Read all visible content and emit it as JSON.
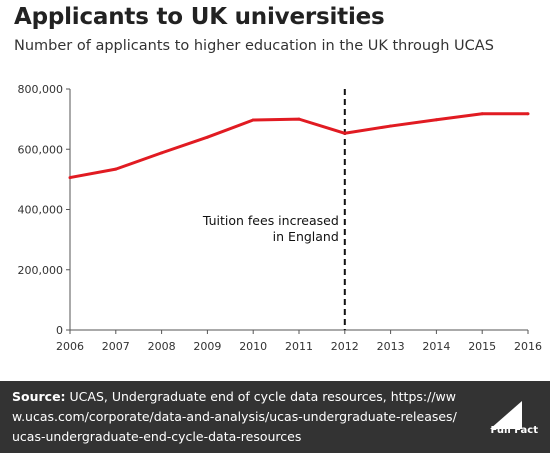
{
  "title": "Applicants to UK universities",
  "subtitle": "Number of applicants to higher education in the UK through UCAS",
  "chart_data": {
    "type": "line",
    "x": [
      2006,
      2007,
      2008,
      2009,
      2010,
      2011,
      2012,
      2013,
      2014,
      2015,
      2016
    ],
    "series": [
      {
        "values": [
          506000,
          534000,
          588000,
          640000,
          697000,
          700000,
          653000,
          677000,
          698000,
          718000,
          718000
        ],
        "color": "#e11b22"
      }
    ],
    "xlim": [
      2006,
      2016
    ],
    "ylim": [
      0,
      800000
    ],
    "yticks": [
      0,
      200000,
      400000,
      600000,
      800000
    ],
    "ytick_labels": [
      "0",
      "200,000",
      "400,000",
      "600,000",
      "800,000"
    ],
    "xtick_labels": [
      "2006",
      "2007",
      "2008",
      "2009",
      "2010",
      "2011",
      "2012",
      "2013",
      "2014",
      "2015",
      "2016"
    ],
    "grid": false,
    "annotation": {
      "x": 2012,
      "line1": "Tuition fees increased",
      "line2": "in England"
    }
  },
  "footer": {
    "source_label": "Source:",
    "source_text": " UCAS, Undergraduate end of cycle data resources, https://www.ucas.com/corporate/data-and-analysis/ucas-undergraduate-releases/ucas-undergraduate-end-cycle-data-resources",
    "logo_text": "Full Fact"
  }
}
